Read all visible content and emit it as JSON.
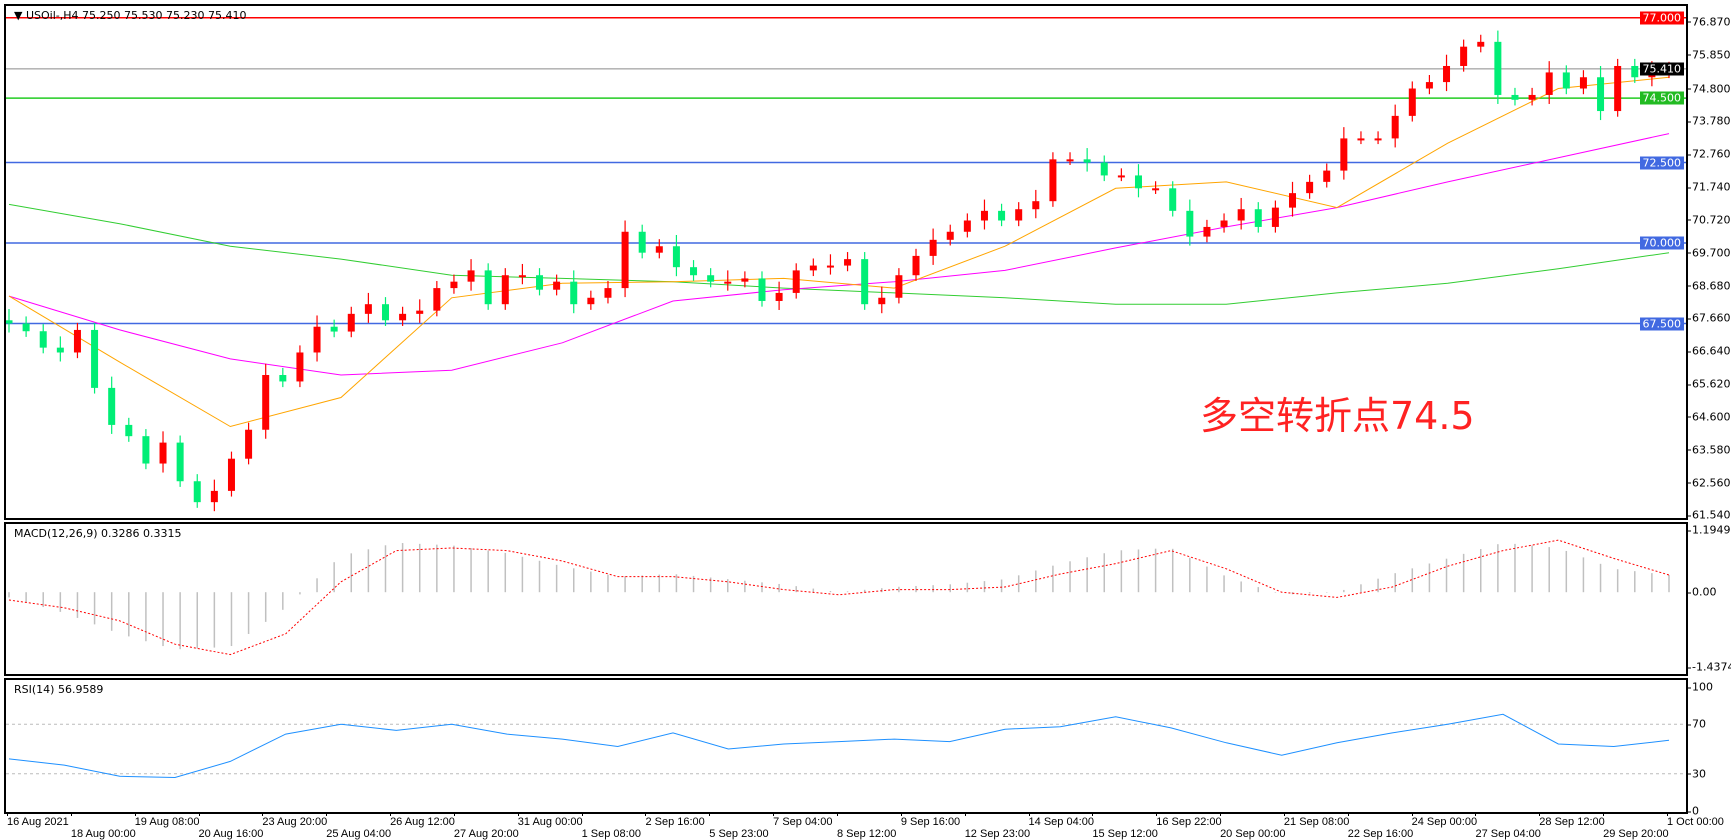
{
  "header": {
    "symbol": "USOil-,H4",
    "ohlc": "75.250 75.530 75.230 75.410",
    "menu_icon": "triangle-down-icon"
  },
  "annotation": "多空转折点74.5",
  "colors": {
    "bull": "#ff0000",
    "bear": "#00ee76",
    "ma_fast": "#ffa500",
    "ma_mid": "#ff00ff",
    "ma_slow": "#32cd32",
    "macd_hist": "#c0c0c0",
    "macd_signal": "#ff0000",
    "rsi": "#1e90ff"
  },
  "price_axis": {
    "ticks": [
      "76.870",
      "75.850",
      "74.800",
      "73.780",
      "72.760",
      "71.740",
      "70.720",
      "69.700",
      "68.680",
      "67.660",
      "66.640",
      "65.620",
      "64.600",
      "63.580",
      "62.560",
      "61.540"
    ]
  },
  "levels": [
    {
      "label": "77.000",
      "value": 77.0,
      "color": "#ff0000"
    },
    {
      "label": "75.410",
      "value": 75.41,
      "color": "#000000",
      "line": "#8a8a8a"
    },
    {
      "label": "74.500",
      "value": 74.5,
      "color": "#22bb22",
      "line": "#22cc22"
    },
    {
      "label": "72.500",
      "value": 72.5,
      "color": "#4169e1"
    },
    {
      "label": "70.000",
      "value": 70.0,
      "color": "#4169e1"
    },
    {
      "label": "67.500",
      "value": 67.5,
      "color": "#4169e1"
    }
  ],
  "chart_data": {
    "type": "candlestick",
    "ylim": [
      61.3,
      77.4
    ],
    "closes": [
      67.5,
      67.26,
      66.75,
      66.6,
      67.3,
      65.5,
      64.35,
      64.0,
      63.15,
      63.8,
      62.6,
      61.95,
      62.3,
      63.3,
      64.2,
      65.9,
      65.7,
      66.6,
      67.4,
      67.25,
      67.8,
      68.1,
      67.6,
      67.8,
      67.9,
      68.6,
      68.8,
      69.15,
      68.1,
      69.0,
      69.0,
      68.55,
      68.8,
      68.1,
      68.3,
      68.6,
      70.35,
      69.7,
      69.9,
      69.25,
      69.0,
      68.8,
      68.8,
      68.9,
      68.2,
      68.45,
      69.15,
      69.3,
      69.3,
      69.5,
      68.1,
      68.3,
      69.0,
      69.6,
      70.1,
      70.35,
      70.7,
      71.0,
      70.7,
      71.05,
      71.3,
      72.6,
      72.6,
      72.5,
      72.1,
      72.1,
      71.7,
      71.7,
      71.0,
      70.2,
      70.5,
      70.7,
      71.05,
      70.5,
      71.1,
      71.55,
      71.9,
      72.25,
      73.25,
      73.25,
      73.25,
      73.95,
      74.8,
      75.0,
      75.5,
      76.1,
      76.25,
      74.6,
      74.45,
      74.6,
      75.3,
      74.8,
      75.15,
      74.1,
      75.5,
      75.15,
      75.3,
      75.41
    ],
    "ma_fast": [
      68.35,
      66.3,
      64.3,
      65.2,
      68.3,
      68.75,
      68.8,
      68.9,
      68.6,
      69.9,
      71.7,
      71.9,
      71.1,
      73.1,
      74.8,
      75.15
    ],
    "ma_mid": [
      68.35,
      67.3,
      66.4,
      65.9,
      66.05,
      66.9,
      68.2,
      68.55,
      68.8,
      69.15,
      69.85,
      70.5,
      71.1,
      71.9,
      72.65,
      73.4
    ],
    "ma_slow": [
      71.2,
      70.6,
      69.9,
      69.5,
      69.0,
      68.9,
      68.8,
      68.6,
      68.45,
      68.3,
      68.1,
      68.1,
      68.45,
      68.75,
      69.2,
      69.7
    ]
  },
  "macd": {
    "title": "MACD(12,26,9) 0.3286 0.3315",
    "ticks": [
      "1.1949",
      "0.00",
      "-1.4374"
    ],
    "range": [
      -1.4374,
      1.1949
    ],
    "histogram": [
      -0.1,
      -0.4,
      -0.8,
      -1.1,
      -1.05,
      -0.3,
      0.7,
      0.95,
      0.9,
      0.75,
      0.5,
      0.3,
      0.35,
      0.25,
      0.15,
      0.0,
      0.1,
      0.15,
      0.25,
      0.55,
      0.8,
      0.85,
      0.3,
      -0.05,
      0.0,
      0.35,
      0.65,
      0.95,
      0.85,
      0.45,
      0.33
    ],
    "signal": [
      -0.15,
      -0.3,
      -0.55,
      -1.0,
      -1.2,
      -0.8,
      0.2,
      0.8,
      0.85,
      0.8,
      0.6,
      0.3,
      0.3,
      0.2,
      0.05,
      -0.05,
      0.05,
      0.05,
      0.1,
      0.35,
      0.55,
      0.8,
      0.45,
      0.0,
      -0.1,
      0.1,
      0.5,
      0.8,
      1.0,
      0.65,
      0.33
    ]
  },
  "rsi": {
    "title": "RSI(14) 56.9589",
    "ticks": [
      "100",
      "70",
      "30",
      "0"
    ],
    "values": [
      42,
      37,
      28,
      27,
      40,
      62,
      70,
      65,
      70,
      62,
      58,
      52,
      63,
      50,
      54,
      56,
      58,
      56,
      66,
      68,
      76,
      67,
      55,
      45,
      55,
      63,
      70,
      78,
      54,
      52,
      57
    ]
  },
  "time_axis": [
    "16 Aug 2021",
    "18 Aug 00:00",
    "19 Aug 08:00",
    "20 Aug 16:00",
    "23 Aug 20:00",
    "25 Aug 04:00",
    "26 Aug 12:00",
    "27 Aug 20:00",
    "31 Aug 00:00",
    "1 Sep 08:00",
    "2 Sep 16:00",
    "5 Sep 23:00",
    "7 Sep 04:00",
    "8 Sep 12:00",
    "9 Sep 16:00",
    "12 Sep 23:00",
    "14 Sep 04:00",
    "15 Sep 12:00",
    "16 Sep 22:00",
    "20 Sep 00:00",
    "21 Sep 08:00",
    "22 Sep 16:00",
    "24 Sep 00:00",
    "27 Sep 04:00",
    "28 Sep 12:00",
    "29 Sep 20:00",
    "1 Oct 00:00"
  ]
}
